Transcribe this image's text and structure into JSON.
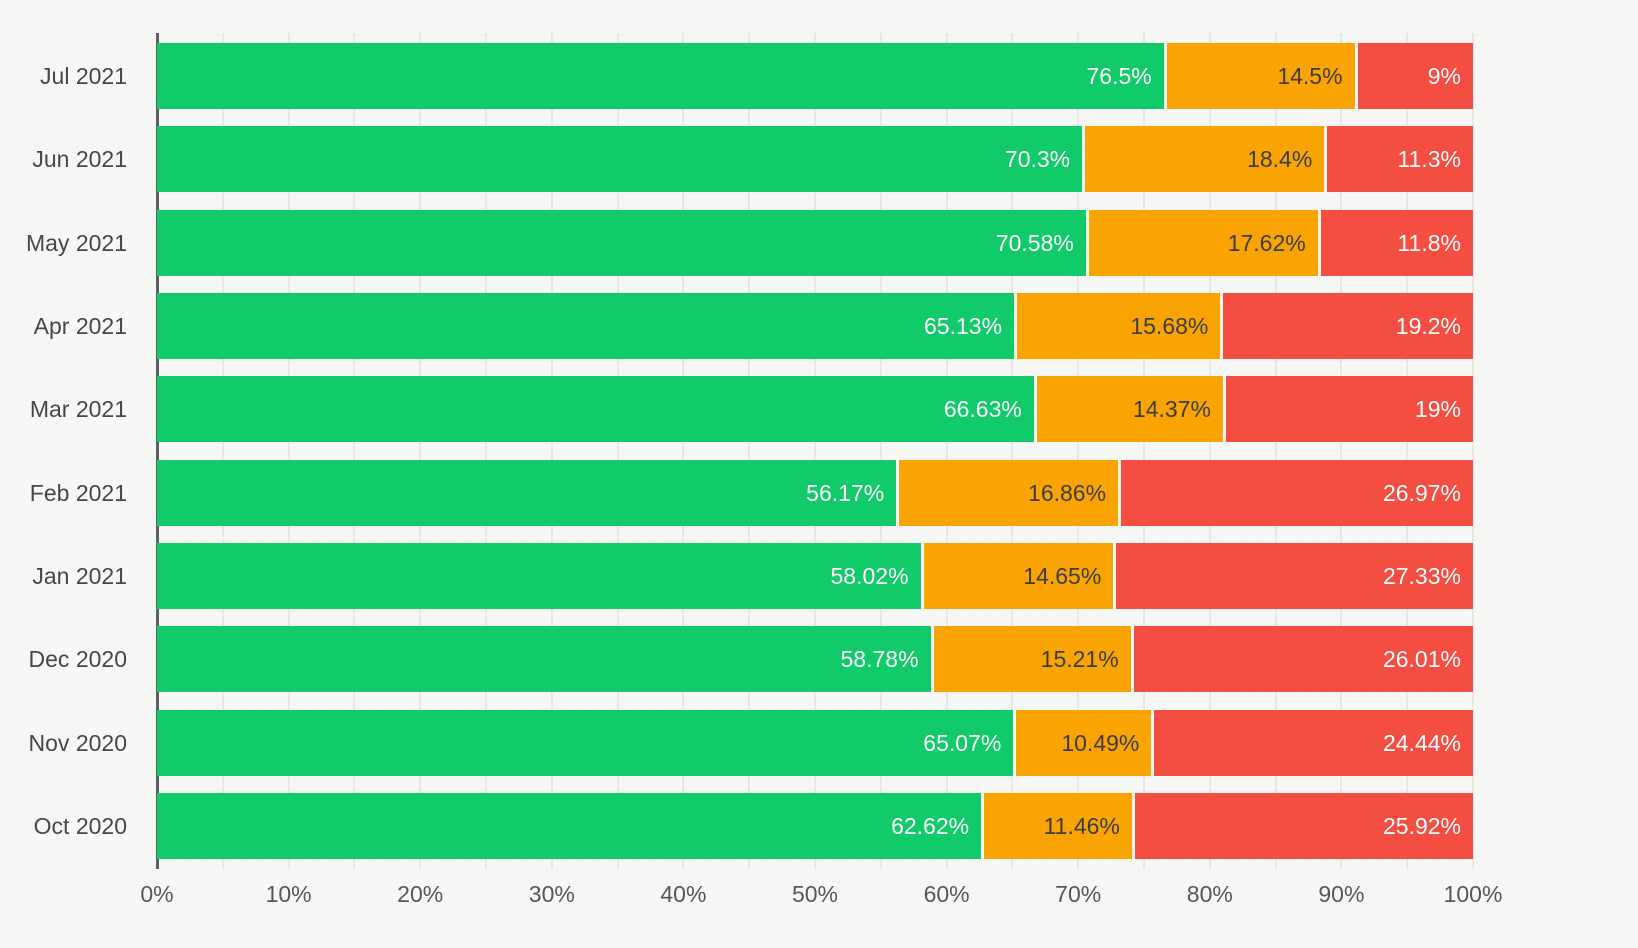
{
  "chart_data": {
    "type": "bar",
    "orientation": "horizontal",
    "stacked": true,
    "stack_total": 100,
    "unit": "%",
    "title": "",
    "xlabel": "",
    "ylabel": "",
    "xlim": [
      0,
      100
    ],
    "legend_position": "none",
    "grid": "vertical gridlines every 5%",
    "categories": [
      "Jul 2021",
      "Jun 2021",
      "May 2021",
      "Apr 2021",
      "Mar 2021",
      "Feb 2021",
      "Jan 2021",
      "Dec 2020",
      "Nov 2020",
      "Oct 2020"
    ],
    "series": [
      {
        "name": "green",
        "color": "#11ca69",
        "label_color": "#ffffff",
        "values": [
          76.5,
          70.3,
          70.58,
          65.13,
          66.63,
          56.17,
          58.02,
          58.78,
          65.07,
          62.62
        ]
      },
      {
        "name": "orange",
        "color": "#f9a402",
        "label_color": "#3d3d3d",
        "values": [
          14.5,
          18.4,
          17.62,
          15.68,
          14.37,
          16.86,
          14.65,
          15.21,
          10.49,
          11.46
        ]
      },
      {
        "name": "red",
        "color": "#f44d41",
        "label_color": "#ffffff",
        "values": [
          9,
          11.3,
          11.8,
          19.2,
          19,
          26.97,
          27.33,
          26.01,
          24.44,
          25.92
        ]
      }
    ],
    "x_ticks": [
      "0%",
      "10%",
      "20%",
      "30%",
      "40%",
      "50%",
      "60%",
      "70%",
      "80%",
      "90%",
      "100%"
    ],
    "x_tick_values": [
      0,
      10,
      20,
      30,
      40,
      50,
      60,
      70,
      80,
      90,
      100
    ],
    "minor_gridline_step": 5
  },
  "colors": {
    "background": "#f7f7f5",
    "axis_line": "#5c6064",
    "gridline": "#e8e8e6",
    "tick_text": "#54585c",
    "category_text": "#45484b"
  }
}
